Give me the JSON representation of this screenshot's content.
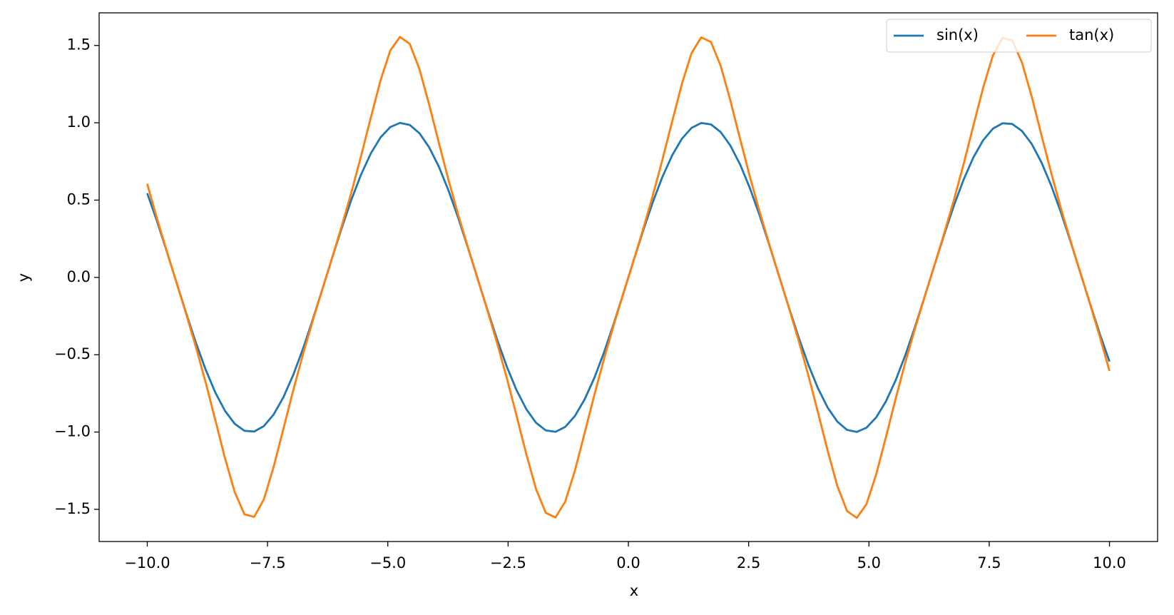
{
  "chart_data": {
    "type": "line",
    "xlabel": "x",
    "ylabel": "y",
    "x": [
      -10,
      -9.798,
      -9.596,
      -9.394,
      -9.192,
      -8.99,
      -8.788,
      -8.586,
      -8.384,
      -8.182,
      -7.98,
      -7.778,
      -7.576,
      -7.374,
      -7.172,
      -6.97,
      -6.768,
      -6.566,
      -6.364,
      -6.162,
      -5.96,
      -5.758,
      -5.556,
      -5.354,
      -5.152,
      -4.949,
      -4.747,
      -4.545,
      -4.343,
      -4.141,
      -3.939,
      -3.737,
      -3.535,
      -3.333,
      -3.131,
      -2.929,
      -2.727,
      -2.525,
      -2.323,
      -2.121,
      -1.919,
      -1.717,
      -1.515,
      -1.313,
      -1.111,
      -0.909,
      -0.707,
      -0.505,
      -0.303,
      -0.101,
      0.101,
      0.303,
      0.505,
      0.707,
      0.909,
      1.111,
      1.313,
      1.515,
      1.717,
      1.919,
      2.121,
      2.323,
      2.525,
      2.727,
      2.929,
      3.131,
      3.333,
      3.535,
      3.737,
      3.939,
      4.141,
      4.343,
      4.545,
      4.747,
      4.949,
      5.152,
      5.354,
      5.556,
      5.758,
      5.96,
      6.162,
      6.364,
      6.566,
      6.768,
      6.97,
      7.172,
      7.374,
      7.576,
      7.778,
      7.98,
      8.182,
      8.384,
      8.586,
      8.788,
      8.99,
      9.192,
      9.394,
      9.596,
      9.798,
      10
    ],
    "series": [
      {
        "name": "sin(x)",
        "color": "#1f77b4",
        "values": [
          0.544,
          0.3646,
          0.1703,
          -0.0308,
          -0.2308,
          -0.4213,
          -0.5947,
          -0.744,
          -0.863,
          -0.9467,
          -0.992,
          -0.997,
          -0.9617,
          -0.8869,
          -0.7762,
          -0.634,
          -0.4658,
          -0.2788,
          -0.0804,
          0.1212,
          0.3179,
          0.5017,
          0.6651,
          0.8013,
          0.905,
          0.9721,
          0.9994,
          0.9862,
          0.9326,
          0.8414,
          0.716,
          0.5611,
          0.3837,
          0.1906,
          -0.0102,
          -0.2106,
          -0.4025,
          -0.5781,
          -0.73,
          -0.8521,
          -0.9398,
          -0.9893,
          -0.9985,
          -0.967,
          -0.896,
          -0.7887,
          -0.6497,
          -0.4839,
          -0.2985,
          -0.1009,
          0.1009,
          0.2985,
          0.4839,
          0.6497,
          0.7887,
          0.896,
          0.967,
          0.9985,
          0.9893,
          0.9398,
          0.8521,
          0.73,
          0.5781,
          0.4025,
          0.2106,
          0.0102,
          -0.1906,
          -0.3837,
          -0.5611,
          -0.716,
          -0.8414,
          -0.9326,
          -0.9862,
          -0.9994,
          -0.9721,
          -0.905,
          -0.8013,
          -0.6651,
          -0.5017,
          -0.3179,
          -0.1212,
          0.0804,
          0.2788,
          0.4658,
          0.634,
          0.7762,
          0.8869,
          0.9617,
          0.997,
          0.992,
          0.9467,
          0.863,
          0.744,
          0.5947,
          0.4213,
          0.2308,
          0.0308,
          -0.1703,
          -0.3646,
          -0.544
        ]
      },
      {
        "name": "tan(x)",
        "color": "#ff7f0e",
        "values": [
          0.6048,
          0.3818,
          0.172,
          -0.0308,
          -0.235,
          -0.4481,
          -0.6763,
          -0.9206,
          -1.1694,
          -1.3886,
          -1.532,
          -1.5489,
          -1.4348,
          -1.2266,
          -0.9818,
          -0.7353,
          -0.5027,
          -0.2862,
          -0.0806,
          0.1218,
          0.329,
          0.5484,
          0.7842,
          1.0325,
          1.2731,
          1.4665,
          1.5553,
          1.5107,
          1.3479,
          1.1185,
          0.8703,
          0.6285,
          0.4037,
          0.1929,
          -0.0102,
          -0.2138,
          -0.4257,
          -0.6525,
          -0.895,
          -1.1432,
          -1.3685,
          -1.5224,
          -1.5525,
          -1.4505,
          -1.2497,
          -1.0068,
          -0.7599,
          -0.5256,
          -0.3077,
          -0.1012,
          0.1012,
          0.3077,
          0.5256,
          0.7599,
          1.0068,
          1.2497,
          1.4505,
          1.5525,
          1.5224,
          1.3685,
          1.1432,
          0.895,
          0.6525,
          0.4257,
          0.2138,
          0.0102,
          -0.1929,
          -0.4037,
          -0.6285,
          -0.8703,
          -1.1185,
          -1.3479,
          -1.5107,
          -1.5553,
          -1.4665,
          -1.2731,
          -1.0325,
          -0.7842,
          -0.5484,
          -0.329,
          -0.1218,
          0.0806,
          0.2862,
          0.5027,
          0.7353,
          0.9818,
          1.2266,
          1.4348,
          1.5489,
          1.532,
          1.3886,
          1.1694,
          0.9206,
          0.6763,
          0.4481,
          0.235,
          0.0308,
          -0.172,
          -0.3818,
          -0.6048
        ]
      }
    ],
    "xlim": [
      -11,
      11
    ],
    "ylim": [
      -1.708,
      1.711
    ],
    "xticks": [
      {
        "value": -10,
        "label": "−10.0"
      },
      {
        "value": -7.5,
        "label": "−7.5"
      },
      {
        "value": -5,
        "label": "−5.0"
      },
      {
        "value": -2.5,
        "label": "−2.5"
      },
      {
        "value": 0,
        "label": "0.0"
      },
      2.5,
      {
        "value": 5,
        "label": "5.0"
      },
      7.5,
      {
        "value": 10,
        "label": "10.0"
      }
    ],
    "yticks": [
      {
        "value": -1.5,
        "label": "−1.5"
      },
      {
        "value": -1,
        "label": "−1.0"
      },
      {
        "value": -0.5,
        "label": "−0.5"
      },
      {
        "value": 0,
        "label": "0.0"
      },
      0.5,
      {
        "value": 1,
        "label": "1.0"
      },
      1.5
    ],
    "grid": false,
    "legend": "upper right",
    "legend_columns": 2
  }
}
